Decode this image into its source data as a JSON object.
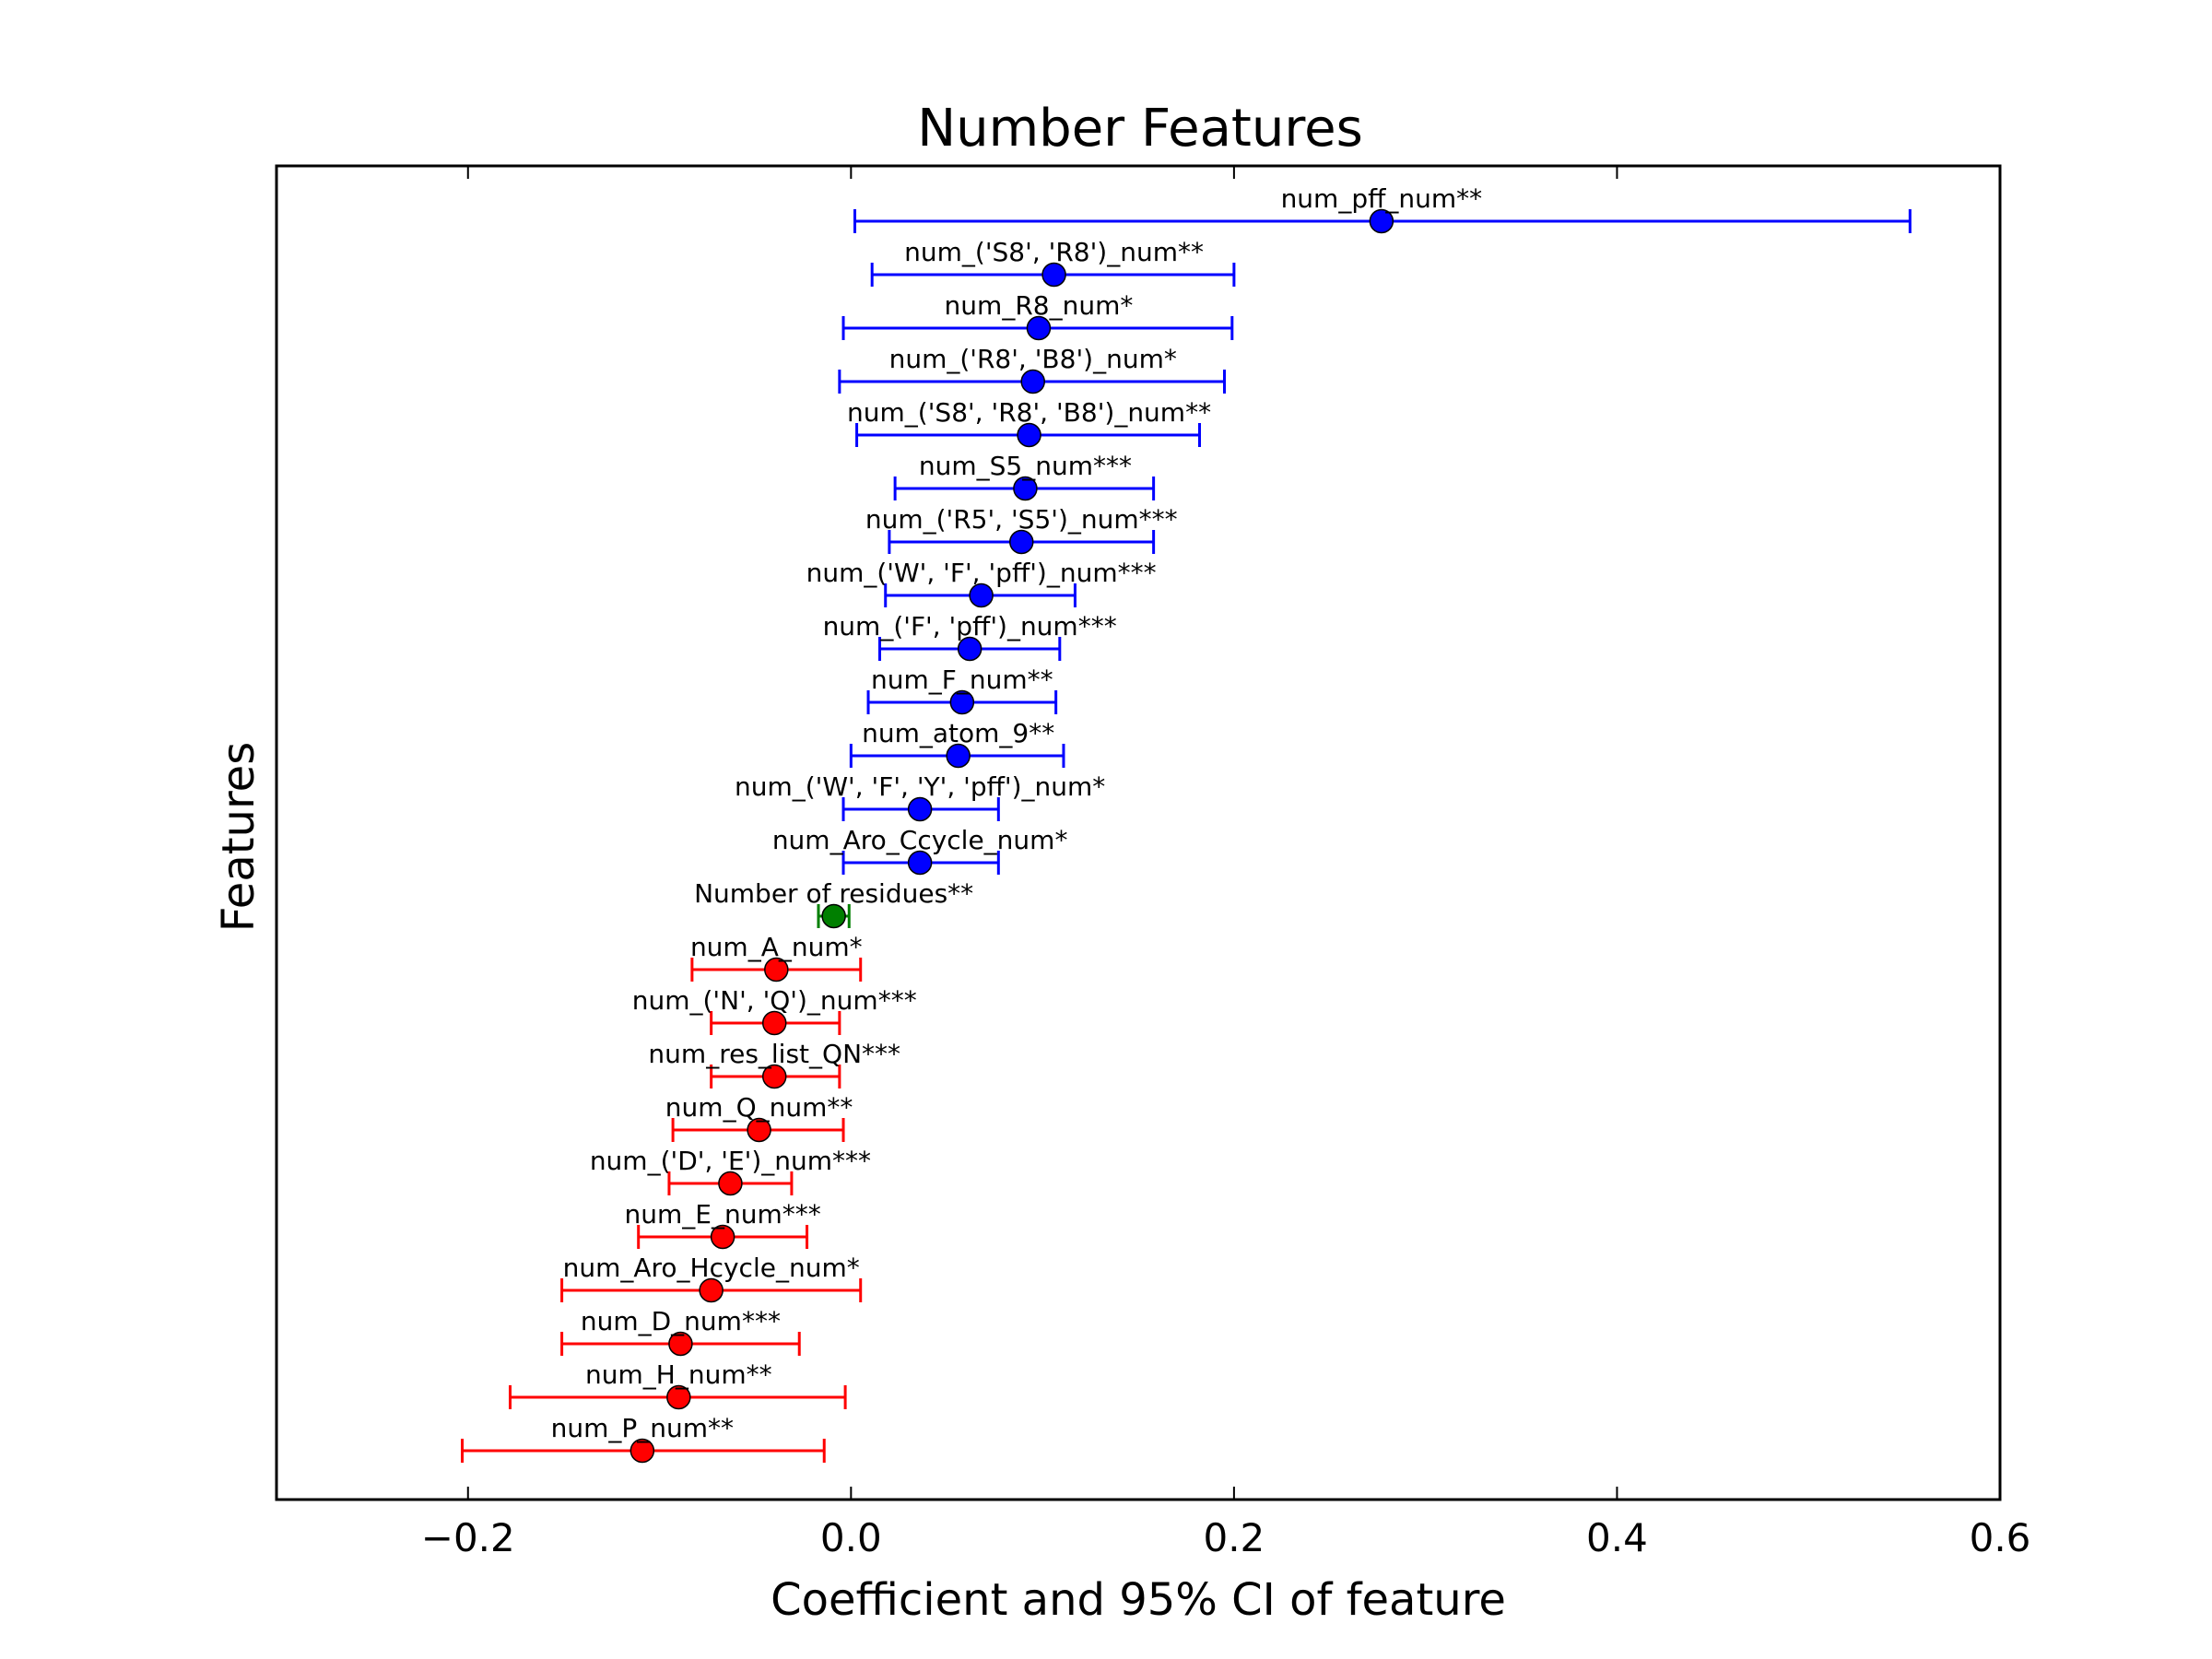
{
  "chart_data": {
    "type": "scatter",
    "title": "Number Features",
    "xlabel": "Coefficient and 95% CI of feature",
    "ylabel": "Features",
    "xlim": [
      -0.3,
      0.6
    ],
    "xticks": [
      -0.2,
      0.0,
      0.2,
      0.4,
      0.6
    ],
    "xtick_labels": [
      "−0.2",
      "0.0",
      "0.2",
      "0.4",
      "0.6"
    ],
    "grid": false,
    "colors": {
      "positive": "#0000ff",
      "neutral": "#007f00",
      "negative": "#ff0000"
    },
    "points": [
      {
        "label": "num_pff_num**",
        "coef": 0.277,
        "lo": 0.002,
        "hi": 0.553,
        "color": "#0000ff"
      },
      {
        "label": "num_('S8', 'R8')_num**",
        "coef": 0.106,
        "lo": 0.011,
        "hi": 0.2,
        "color": "#0000ff"
      },
      {
        "label": "num_R8_num*",
        "coef": 0.098,
        "lo": -0.004,
        "hi": 0.199,
        "color": "#0000ff"
      },
      {
        "label": "num_('R8', 'B8')_num*",
        "coef": 0.095,
        "lo": -0.006,
        "hi": 0.195,
        "color": "#0000ff"
      },
      {
        "label": "num_('S8', 'R8', 'B8')_num**",
        "coef": 0.093,
        "lo": 0.003,
        "hi": 0.182,
        "color": "#0000ff"
      },
      {
        "label": "num_S5_num***",
        "coef": 0.091,
        "lo": 0.023,
        "hi": 0.158,
        "color": "#0000ff"
      },
      {
        "label": "num_('R5', 'S5')_num***",
        "coef": 0.089,
        "lo": 0.02,
        "hi": 0.158,
        "color": "#0000ff"
      },
      {
        "label": "num_('W', 'F', 'pff')_num***",
        "coef": 0.068,
        "lo": 0.018,
        "hi": 0.117,
        "color": "#0000ff"
      },
      {
        "label": "num_('F', 'pff')_num***",
        "coef": 0.062,
        "lo": 0.015,
        "hi": 0.109,
        "color": "#0000ff"
      },
      {
        "label": "num_F_num**",
        "coef": 0.058,
        "lo": 0.009,
        "hi": 0.107,
        "color": "#0000ff"
      },
      {
        "label": "num_atom_9**",
        "coef": 0.056,
        "lo": 0.0,
        "hi": 0.111,
        "color": "#0000ff"
      },
      {
        "label": "num_('W', 'F', 'Y', 'pff')_num*",
        "coef": 0.036,
        "lo": -0.004,
        "hi": 0.077,
        "color": "#0000ff"
      },
      {
        "label": "num_Aro_Ccycle_num*",
        "coef": 0.036,
        "lo": -0.004,
        "hi": 0.077,
        "color": "#0000ff"
      },
      {
        "label": "Number of residues**",
        "coef": -0.009,
        "lo": -0.017,
        "hi": -0.001,
        "color": "#007f00"
      },
      {
        "label": "num_A_num*",
        "coef": -0.039,
        "lo": -0.083,
        "hi": 0.005,
        "color": "#ff0000"
      },
      {
        "label": "num_('N', 'Q')_num***",
        "coef": -0.04,
        "lo": -0.073,
        "hi": -0.006,
        "color": "#ff0000"
      },
      {
        "label": "num_res_list_QN***",
        "coef": -0.04,
        "lo": -0.073,
        "hi": -0.006,
        "color": "#ff0000"
      },
      {
        "label": "num_Q_num**",
        "coef": -0.048,
        "lo": -0.093,
        "hi": -0.004,
        "color": "#ff0000"
      },
      {
        "label": "num_('D', 'E')_num***",
        "coef": -0.063,
        "lo": -0.095,
        "hi": -0.031,
        "color": "#ff0000"
      },
      {
        "label": "num_E_num***",
        "coef": -0.067,
        "lo": -0.111,
        "hi": -0.023,
        "color": "#ff0000"
      },
      {
        "label": "num_Aro_Hcycle_num*",
        "coef": -0.073,
        "lo": -0.151,
        "hi": 0.005,
        "color": "#ff0000"
      },
      {
        "label": "num_D_num***",
        "coef": -0.089,
        "lo": -0.151,
        "hi": -0.027,
        "color": "#ff0000"
      },
      {
        "label": "num_H_num**",
        "coef": -0.09,
        "lo": -0.178,
        "hi": -0.003,
        "color": "#ff0000"
      },
      {
        "label": "num_P_num**",
        "coef": -0.109,
        "lo": -0.203,
        "hi": -0.014,
        "color": "#ff0000"
      }
    ]
  }
}
